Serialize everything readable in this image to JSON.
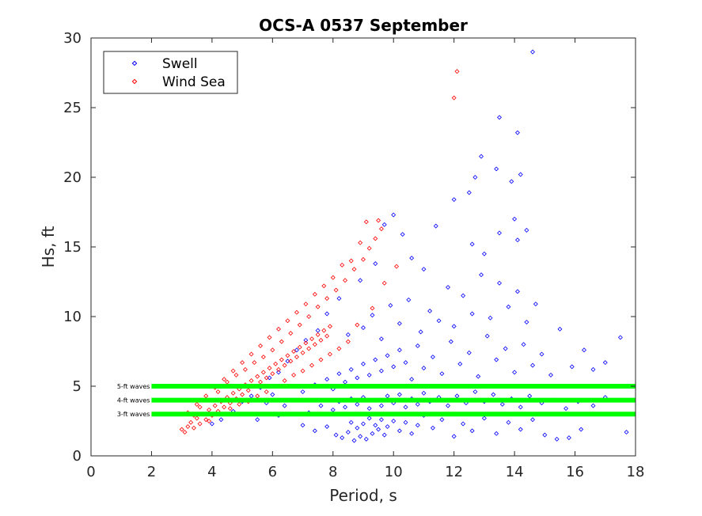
{
  "chart_data": {
    "type": "scatter",
    "title": "OCS-A 0537 September",
    "xlabel": "Period, s",
    "ylabel": "Hs, ft",
    "xlim": [
      0,
      18
    ],
    "ylim": [
      0,
      30
    ],
    "xticks": [
      "0",
      "2",
      "4",
      "6",
      "8",
      "10",
      "12",
      "14",
      "16",
      "18"
    ],
    "yticks": [
      "0",
      "5",
      "10",
      "15",
      "20",
      "25",
      "30"
    ],
    "grid": false,
    "legend_position": "top-left",
    "marker": "diamond",
    "series": [
      {
        "name": "Swell",
        "color": "#0000ff",
        "points": [
          [
            5.5,
            2.6
          ],
          [
            6.2,
            2.9
          ],
          [
            7.0,
            2.2
          ],
          [
            7.4,
            1.8
          ],
          [
            7.8,
            2.1
          ],
          [
            8.1,
            1.5
          ],
          [
            8.3,
            1.3
          ],
          [
            8.5,
            1.7
          ],
          [
            8.7,
            1.1
          ],
          [
            8.9,
            1.4
          ],
          [
            9.1,
            1.2
          ],
          [
            9.3,
            1.6
          ],
          [
            9.5,
            1.9
          ],
          [
            9.7,
            1.5
          ],
          [
            8.6,
            2.4
          ],
          [
            8.8,
            2.0
          ],
          [
            9.0,
            2.3
          ],
          [
            9.2,
            2.7
          ],
          [
            9.4,
            2.2
          ],
          [
            9.6,
            2.6
          ],
          [
            9.8,
            2.1
          ],
          [
            10.0,
            2.5
          ],
          [
            10.2,
            1.8
          ],
          [
            10.4,
            2.4
          ],
          [
            10.6,
            1.6
          ],
          [
            10.8,
            2.2
          ],
          [
            11.0,
            2.9
          ],
          [
            11.3,
            2.0
          ],
          [
            11.6,
            2.6
          ],
          [
            12.0,
            1.4
          ],
          [
            12.3,
            2.3
          ],
          [
            12.6,
            1.8
          ],
          [
            13.0,
            2.7
          ],
          [
            13.4,
            1.6
          ],
          [
            13.8,
            2.4
          ],
          [
            14.2,
            1.9
          ],
          [
            14.6,
            2.6
          ],
          [
            15.0,
            1.5
          ],
          [
            15.4,
            1.2
          ],
          [
            15.8,
            1.3
          ],
          [
            16.2,
            1.9
          ],
          [
            17.7,
            1.7
          ],
          [
            7.2,
            3.1
          ],
          [
            7.6,
            3.6
          ],
          [
            8.0,
            3.3
          ],
          [
            8.2,
            3.9
          ],
          [
            8.4,
            3.5
          ],
          [
            8.6,
            4.1
          ],
          [
            8.8,
            3.7
          ],
          [
            9.0,
            4.2
          ],
          [
            9.2,
            3.4
          ],
          [
            9.4,
            4.0
          ],
          [
            9.6,
            3.6
          ],
          [
            9.8,
            4.3
          ],
          [
            10.0,
            3.8
          ],
          [
            10.2,
            4.4
          ],
          [
            10.4,
            3.5
          ],
          [
            10.6,
            4.1
          ],
          [
            10.8,
            3.7
          ],
          [
            11.0,
            4.5
          ],
          [
            11.2,
            3.9
          ],
          [
            11.5,
            4.2
          ],
          [
            11.8,
            3.6
          ],
          [
            12.1,
            4.3
          ],
          [
            12.4,
            3.8
          ],
          [
            12.7,
            4.6
          ],
          [
            13.0,
            3.9
          ],
          [
            13.3,
            4.4
          ],
          [
            13.6,
            3.7
          ],
          [
            13.9,
            4.1
          ],
          [
            14.2,
            3.5
          ],
          [
            14.5,
            4.3
          ],
          [
            14.9,
            3.8
          ],
          [
            15.3,
            4.0
          ],
          [
            15.7,
            3.4
          ],
          [
            16.1,
            3.9
          ],
          [
            16.6,
            3.6
          ],
          [
            17.0,
            4.2
          ],
          [
            5.8,
            3.8
          ],
          [
            6.0,
            4.4
          ],
          [
            6.4,
            3.6
          ],
          [
            6.8,
            4.0
          ],
          [
            7.0,
            4.6
          ],
          [
            7.4,
            5.1
          ],
          [
            7.8,
            5.5
          ],
          [
            8.0,
            4.8
          ],
          [
            8.2,
            5.9
          ],
          [
            8.4,
            5.3
          ],
          [
            8.6,
            6.2
          ],
          [
            8.8,
            5.6
          ],
          [
            9.0,
            6.6
          ],
          [
            9.2,
            5.8
          ],
          [
            9.4,
            6.9
          ],
          [
            9.6,
            6.1
          ],
          [
            9.8,
            7.2
          ],
          [
            10.0,
            6.4
          ],
          [
            10.2,
            7.6
          ],
          [
            10.4,
            6.7
          ],
          [
            10.6,
            5.5
          ],
          [
            10.8,
            7.9
          ],
          [
            11.0,
            6.3
          ],
          [
            11.3,
            7.1
          ],
          [
            11.6,
            5.9
          ],
          [
            11.9,
            8.2
          ],
          [
            12.2,
            6.6
          ],
          [
            12.5,
            7.4
          ],
          [
            12.8,
            5.7
          ],
          [
            13.1,
            8.6
          ],
          [
            13.4,
            6.9
          ],
          [
            13.7,
            7.7
          ],
          [
            14.0,
            6.0
          ],
          [
            14.3,
            8.0
          ],
          [
            14.6,
            6.5
          ],
          [
            14.9,
            7.3
          ],
          [
            15.2,
            5.8
          ],
          [
            15.5,
            9.1
          ],
          [
            15.9,
            6.4
          ],
          [
            16.3,
            7.6
          ],
          [
            16.6,
            6.2
          ],
          [
            17.0,
            6.7
          ],
          [
            17.5,
            8.5
          ],
          [
            8.5,
            8.7
          ],
          [
            9.0,
            9.2
          ],
          [
            9.3,
            10.1
          ],
          [
            9.6,
            8.4
          ],
          [
            9.9,
            10.8
          ],
          [
            10.2,
            9.5
          ],
          [
            10.5,
            11.2
          ],
          [
            10.9,
            8.9
          ],
          [
            11.2,
            10.4
          ],
          [
            11.5,
            9.7
          ],
          [
            11.8,
            12.1
          ],
          [
            12.0,
            9.3
          ],
          [
            12.3,
            11.5
          ],
          [
            12.6,
            10.2
          ],
          [
            12.9,
            13.0
          ],
          [
            13.2,
            9.9
          ],
          [
            13.5,
            12.4
          ],
          [
            13.8,
            10.7
          ],
          [
            14.1,
            11.8
          ],
          [
            14.4,
            9.6
          ],
          [
            14.7,
            10.9
          ],
          [
            13.0,
            14.5
          ],
          [
            12.6,
            15.2
          ],
          [
            11.4,
            16.5
          ],
          [
            10.3,
            15.9
          ],
          [
            10.0,
            17.3
          ],
          [
            9.7,
            16.6
          ],
          [
            13.5,
            16.0
          ],
          [
            14.1,
            15.5
          ],
          [
            14.4,
            16.2
          ],
          [
            14.0,
            17.0
          ],
          [
            12.0,
            18.4
          ],
          [
            12.5,
            18.9
          ],
          [
            13.4,
            20.6
          ],
          [
            12.7,
            20.0
          ],
          [
            12.9,
            21.5
          ],
          [
            13.9,
            19.7
          ],
          [
            14.2,
            20.2
          ],
          [
            13.5,
            24.3
          ],
          [
            14.1,
            23.2
          ],
          [
            14.6,
            29.0
          ],
          [
            11.0,
            13.4
          ],
          [
            10.6,
            14.2
          ],
          [
            9.4,
            13.8
          ],
          [
            8.9,
            12.6
          ],
          [
            8.2,
            11.3
          ],
          [
            7.8,
            10.2
          ],
          [
            7.5,
            9.0
          ],
          [
            7.1,
            8.3
          ],
          [
            6.8,
            7.6
          ],
          [
            6.5,
            6.8
          ],
          [
            6.2,
            6.0
          ],
          [
            5.9,
            5.6
          ],
          [
            5.6,
            4.9
          ],
          [
            5.3,
            4.3
          ],
          [
            5.0,
            3.9
          ],
          [
            4.7,
            3.2
          ],
          [
            4.3,
            2.6
          ],
          [
            4.0,
            2.3
          ]
        ]
      },
      {
        "name": "Wind Sea",
        "color": "#ff0000",
        "points": [
          [
            3.0,
            1.9
          ],
          [
            3.1,
            1.7
          ],
          [
            3.2,
            2.1
          ],
          [
            3.3,
            2.4
          ],
          [
            3.4,
            2.0
          ],
          [
            3.5,
            2.7
          ],
          [
            3.6,
            2.3
          ],
          [
            3.7,
            3.0
          ],
          [
            3.8,
            2.6
          ],
          [
            3.9,
            3.3
          ],
          [
            4.0,
            2.9
          ],
          [
            4.1,
            3.6
          ],
          [
            4.2,
            3.2
          ],
          [
            4.3,
            3.9
          ],
          [
            4.4,
            3.5
          ],
          [
            4.5,
            4.2
          ],
          [
            4.6,
            3.8
          ],
          [
            4.7,
            4.5
          ],
          [
            4.8,
            4.1
          ],
          [
            4.9,
            4.8
          ],
          [
            5.0,
            4.4
          ],
          [
            5.1,
            5.1
          ],
          [
            5.2,
            4.7
          ],
          [
            5.3,
            5.4
          ],
          [
            5.4,
            5.0
          ],
          [
            5.5,
            5.7
          ],
          [
            5.6,
            5.3
          ],
          [
            5.7,
            6.0
          ],
          [
            5.8,
            5.6
          ],
          [
            5.9,
            6.3
          ],
          [
            6.0,
            5.9
          ],
          [
            6.1,
            6.6
          ],
          [
            6.2,
            6.2
          ],
          [
            6.3,
            6.9
          ],
          [
            6.4,
            6.5
          ],
          [
            6.5,
            7.2
          ],
          [
            6.6,
            6.8
          ],
          [
            6.7,
            7.5
          ],
          [
            6.8,
            7.1
          ],
          [
            6.9,
            7.8
          ],
          [
            7.0,
            7.4
          ],
          [
            7.1,
            8.1
          ],
          [
            7.2,
            7.7
          ],
          [
            7.3,
            8.4
          ],
          [
            7.4,
            8.0
          ],
          [
            7.5,
            8.7
          ],
          [
            7.6,
            8.3
          ],
          [
            7.7,
            9.0
          ],
          [
            7.8,
            8.6
          ],
          [
            7.9,
            9.3
          ],
          [
            4.2,
            4.6
          ],
          [
            4.5,
            5.3
          ],
          [
            4.8,
            5.8
          ],
          [
            5.1,
            6.2
          ],
          [
            5.4,
            6.7
          ],
          [
            5.7,
            7.1
          ],
          [
            6.0,
            7.6
          ],
          [
            6.3,
            8.2
          ],
          [
            6.6,
            8.8
          ],
          [
            6.9,
            9.4
          ],
          [
            7.2,
            10.0
          ],
          [
            7.5,
            10.7
          ],
          [
            7.8,
            11.3
          ],
          [
            8.1,
            11.9
          ],
          [
            8.4,
            12.6
          ],
          [
            8.7,
            13.4
          ],
          [
            9.0,
            14.1
          ],
          [
            9.2,
            14.9
          ],
          [
            9.4,
            15.6
          ],
          [
            9.6,
            16.3
          ],
          [
            9.1,
            16.8
          ],
          [
            9.5,
            16.9
          ],
          [
            8.9,
            15.3
          ],
          [
            8.6,
            14.0
          ],
          [
            8.3,
            13.7
          ],
          [
            8.0,
            12.8
          ],
          [
            7.7,
            12.2
          ],
          [
            7.4,
            11.6
          ],
          [
            7.1,
            10.9
          ],
          [
            6.8,
            10.3
          ],
          [
            6.5,
            9.7
          ],
          [
            6.2,
            9.1
          ],
          [
            5.9,
            8.5
          ],
          [
            5.6,
            7.9
          ],
          [
            5.3,
            7.3
          ],
          [
            5.0,
            6.7
          ],
          [
            4.7,
            6.1
          ],
          [
            4.4,
            5.5
          ],
          [
            4.1,
            4.9
          ],
          [
            3.8,
            4.3
          ],
          [
            3.5,
            3.7
          ],
          [
            3.2,
            3.1
          ],
          [
            3.4,
            2.9
          ],
          [
            3.6,
            3.5
          ],
          [
            3.9,
            2.5
          ],
          [
            4.3,
            3.0
          ],
          [
            4.6,
            3.4
          ],
          [
            4.9,
            3.7
          ],
          [
            5.2,
            3.9
          ],
          [
            5.5,
            4.3
          ],
          [
            5.8,
            4.6
          ],
          [
            6.1,
            5.0
          ],
          [
            6.4,
            5.4
          ],
          [
            6.7,
            5.8
          ],
          [
            7.0,
            6.1
          ],
          [
            7.3,
            6.5
          ],
          [
            7.6,
            6.9
          ],
          [
            7.9,
            7.3
          ],
          [
            8.2,
            7.7
          ],
          [
            8.5,
            8.2
          ],
          [
            8.8,
            9.4
          ],
          [
            9.3,
            10.6
          ],
          [
            9.7,
            12.4
          ],
          [
            10.1,
            13.6
          ],
          [
            12.0,
            25.7
          ],
          [
            12.1,
            27.6
          ]
        ]
      }
    ],
    "reference_lines": [
      {
        "label": "5-ft waves",
        "y": 5,
        "x_start": 2,
        "x_end": 18,
        "color": "#00ff00"
      },
      {
        "label": "4-ft waves",
        "y": 4,
        "x_start": 2,
        "x_end": 18,
        "color": "#00ff00"
      },
      {
        "label": "3-ft waves",
        "y": 3,
        "x_start": 2,
        "x_end": 18,
        "color": "#00ff00"
      }
    ]
  }
}
